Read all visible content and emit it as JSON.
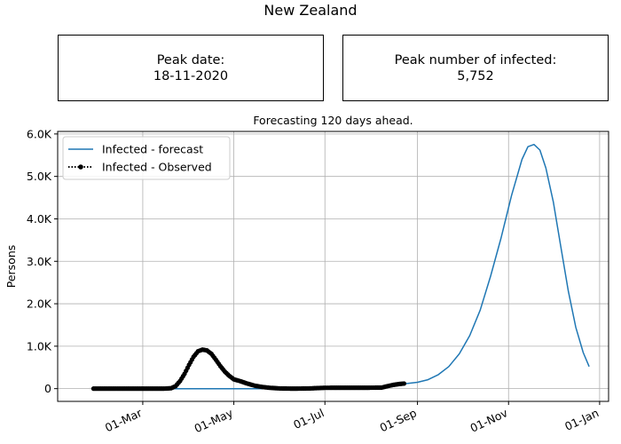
{
  "figure": {
    "title": "New Zealand"
  },
  "kpis": {
    "peak_date": {
      "label": "Peak date:",
      "value": "18-11-2020"
    },
    "peak_infected": {
      "label": "Peak number of infected:",
      "value": "5,752"
    }
  },
  "chart_data": {
    "type": "line",
    "title": "Forecasting 120 days ahead.",
    "xlabel": "",
    "ylabel": "Persons",
    "xlim": [
      "2020-01-04",
      "2021-01-07"
    ],
    "ylim": [
      -300,
      6060
    ],
    "x_ticks": [
      {
        "date": "2020-03-01",
        "label": "01-Mar"
      },
      {
        "date": "2020-05-01",
        "label": "01-May"
      },
      {
        "date": "2020-07-01",
        "label": "01-Jul"
      },
      {
        "date": "2020-09-01",
        "label": "01-Sep"
      },
      {
        "date": "2020-11-01",
        "label": "01-Nov"
      },
      {
        "date": "2021-01-01",
        "label": "01-Jan"
      }
    ],
    "y_ticks": [
      {
        "value": 0,
        "label": "0"
      },
      {
        "value": 1000,
        "label": "1.0K"
      },
      {
        "value": 2000,
        "label": "2.0K"
      },
      {
        "value": 3000,
        "label": "3.0K"
      },
      {
        "value": 4000,
        "label": "4.0K"
      },
      {
        "value": 5000,
        "label": "5.0K"
      },
      {
        "value": 6000,
        "label": "6.0K"
      }
    ],
    "grid": true,
    "legend_position": "top-left",
    "series": [
      {
        "name": "Infected - forecast",
        "color": "#1f77b4",
        "style": "solid",
        "points": [
          [
            "2020-03-17",
            0
          ],
          [
            "2020-04-15",
            0
          ],
          [
            "2020-05-15",
            0
          ],
          [
            "2020-06-15",
            0
          ],
          [
            "2020-07-15",
            0
          ],
          [
            "2020-08-01",
            30
          ],
          [
            "2020-08-15",
            80
          ],
          [
            "2020-08-25",
            120
          ],
          [
            "2020-09-01",
            150
          ],
          [
            "2020-09-08",
            210
          ],
          [
            "2020-09-15",
            330
          ],
          [
            "2020-09-22",
            520
          ],
          [
            "2020-09-29",
            820
          ],
          [
            "2020-10-06",
            1250
          ],
          [
            "2020-10-13",
            1850
          ],
          [
            "2020-10-20",
            2650
          ],
          [
            "2020-10-27",
            3550
          ],
          [
            "2020-11-03",
            4550
          ],
          [
            "2020-11-10",
            5400
          ],
          [
            "2020-11-14",
            5700
          ],
          [
            "2020-11-18",
            5752
          ],
          [
            "2020-11-22",
            5620
          ],
          [
            "2020-11-26",
            5200
          ],
          [
            "2020-12-01",
            4400
          ],
          [
            "2020-12-06",
            3350
          ],
          [
            "2020-12-11",
            2300
          ],
          [
            "2020-12-16",
            1450
          ],
          [
            "2020-12-21",
            850
          ],
          [
            "2020-12-25",
            520
          ]
        ]
      },
      {
        "name": "Infected - Observed",
        "color": "#000000",
        "style": "dotted",
        "marker": "circle",
        "points": [
          [
            "2020-01-28",
            0
          ],
          [
            "2020-02-05",
            0
          ],
          [
            "2020-02-15",
            0
          ],
          [
            "2020-02-25",
            0
          ],
          [
            "2020-03-05",
            0
          ],
          [
            "2020-03-15",
            0
          ],
          [
            "2020-03-20",
            10
          ],
          [
            "2020-03-23",
            60
          ],
          [
            "2020-03-26",
            180
          ],
          [
            "2020-03-29",
            350
          ],
          [
            "2020-04-01",
            560
          ],
          [
            "2020-04-04",
            750
          ],
          [
            "2020-04-07",
            880
          ],
          [
            "2020-04-10",
            920
          ],
          [
            "2020-04-13",
            900
          ],
          [
            "2020-04-16",
            820
          ],
          [
            "2020-04-19",
            680
          ],
          [
            "2020-04-22",
            530
          ],
          [
            "2020-04-25",
            400
          ],
          [
            "2020-04-28",
            300
          ],
          [
            "2020-05-01",
            220
          ],
          [
            "2020-05-05",
            180
          ],
          [
            "2020-05-10",
            120
          ],
          [
            "2020-05-15",
            70
          ],
          [
            "2020-05-20",
            40
          ],
          [
            "2020-05-25",
            20
          ],
          [
            "2020-06-01",
            5
          ],
          [
            "2020-06-10",
            0
          ],
          [
            "2020-06-20",
            5
          ],
          [
            "2020-07-01",
            20
          ],
          [
            "2020-07-10",
            22
          ],
          [
            "2020-07-20",
            22
          ],
          [
            "2020-07-30",
            22
          ],
          [
            "2020-08-08",
            25
          ],
          [
            "2020-08-12",
            60
          ],
          [
            "2020-08-16",
            90
          ],
          [
            "2020-08-20",
            110
          ],
          [
            "2020-08-23",
            120
          ]
        ]
      }
    ]
  }
}
